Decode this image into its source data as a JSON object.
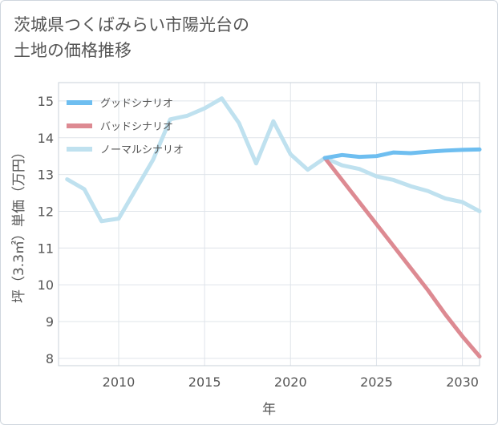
{
  "page": {
    "title_line1": "茨城県つくばみらい市陽光台の",
    "title_line2": "土地の価格推移"
  },
  "chart_data": {
    "type": "line",
    "title": "茨城県つくばみらい市陽光台の土地の価格推移",
    "xlabel": "年",
    "ylabel": "坪（3.3㎡）単価（万円）",
    "xlim": [
      2006.5,
      2031
    ],
    "ylim": [
      7.8,
      15.5
    ],
    "xticks": [
      2010,
      2015,
      2020,
      2025,
      2030
    ],
    "yticks": [
      8,
      9,
      10,
      11,
      12,
      13,
      14,
      15
    ],
    "grid": true,
    "legend_position": "top-left",
    "series": [
      {
        "name": "グッドシナリオ",
        "color": "#6ebef0",
        "x": [
          2022,
          2023,
          2024,
          2025,
          2026,
          2027,
          2028,
          2029,
          2030,
          2031
        ],
        "values": [
          13.45,
          13.53,
          13.48,
          13.5,
          13.6,
          13.58,
          13.62,
          13.65,
          13.67,
          13.68
        ]
      },
      {
        "name": "バッドシナリオ",
        "color": "#dd8a92",
        "x": [
          2022,
          2023,
          2024,
          2025,
          2026,
          2027,
          2028,
          2029,
          2030,
          2031
        ],
        "values": [
          13.45,
          12.85,
          12.25,
          11.65,
          11.05,
          10.45,
          9.85,
          9.2,
          8.6,
          8.05
        ]
      },
      {
        "name": "ノーマルシナリオ",
        "color": "#bfe1ef",
        "x": [
          2007,
          2008,
          2009,
          2010,
          2011,
          2012,
          2013,
          2014,
          2015,
          2016,
          2017,
          2018,
          2019,
          2020,
          2021,
          2022,
          2023,
          2024,
          2025,
          2026,
          2027,
          2028,
          2029,
          2030,
          2031
        ],
        "values": [
          12.87,
          12.6,
          11.73,
          11.8,
          12.6,
          13.4,
          14.5,
          14.6,
          14.8,
          15.07,
          14.4,
          13.3,
          14.45,
          13.55,
          13.13,
          13.45,
          13.25,
          13.15,
          12.95,
          12.85,
          12.68,
          12.55,
          12.35,
          12.25,
          12.0
        ]
      }
    ]
  }
}
